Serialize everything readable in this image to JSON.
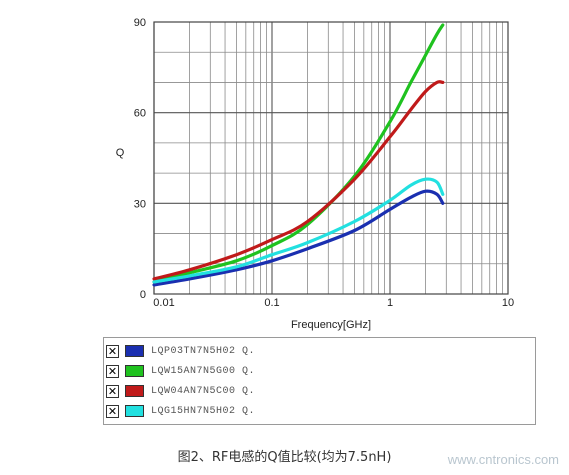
{
  "chart_data": {
    "type": "line",
    "xlabel": "Frequency[GHz]",
    "ylabel": "Q",
    "xscale": "log",
    "xlim": [
      0.01,
      10
    ],
    "ylim": [
      0,
      90
    ],
    "x_ticks": [
      "0.01",
      "0.1",
      "1",
      "10"
    ],
    "y_ticks": [
      "0",
      "30",
      "60",
      "90"
    ],
    "grid": true,
    "legend_position": "bottom",
    "series": [
      {
        "name": "LQP03TN7N5H02  Q.",
        "color": "#1a2fb0",
        "x": [
          0.01,
          0.02,
          0.05,
          0.1,
          0.2,
          0.5,
          1.0,
          1.5,
          2.0,
          2.5,
          2.8
        ],
        "y": [
          3,
          5,
          8,
          11,
          15,
          21,
          28,
          32,
          34,
          33,
          30
        ]
      },
      {
        "name": "LQW15AN7N5G00  Q.",
        "color": "#1fc21f",
        "x": [
          0.01,
          0.02,
          0.05,
          0.1,
          0.2,
          0.5,
          1.0,
          1.5,
          2.0,
          2.5,
          2.8
        ],
        "y": [
          4,
          7,
          11,
          16,
          23,
          39,
          57,
          70,
          79,
          86,
          89
        ]
      },
      {
        "name": "LQW04AN7N5C00  Q.",
        "color": "#c01a1a",
        "x": [
          0.01,
          0.02,
          0.05,
          0.1,
          0.2,
          0.5,
          1.0,
          1.5,
          2.0,
          2.5,
          2.8
        ],
        "y": [
          5,
          8,
          13,
          18,
          24,
          38,
          52,
          61,
          67,
          70,
          70
        ]
      },
      {
        "name": "LQG15HN7N5H02  Q.",
        "color": "#22e0e0",
        "x": [
          0.01,
          0.02,
          0.05,
          0.1,
          0.2,
          0.5,
          1.0,
          1.5,
          2.0,
          2.5,
          2.8
        ],
        "y": [
          4,
          6,
          9,
          13,
          17,
          24,
          31,
          36,
          38,
          37,
          33
        ]
      }
    ]
  },
  "legend": {
    "items": [
      {
        "label": "LQP03TN7N5H02  Q.",
        "color": "#1a2fb0",
        "checked": "✕"
      },
      {
        "label": "LQW15AN7N5G00  Q.",
        "color": "#1fc21f",
        "checked": "✕"
      },
      {
        "label": "LQW04AN7N5C00  Q.",
        "color": "#c01a1a",
        "checked": "✕"
      },
      {
        "label": "LQG15HN7N5H02  Q.",
        "color": "#22e0e0",
        "checked": "✕"
      }
    ]
  },
  "caption": "图2、RF电感的Q值比较(均为7.5nH)",
  "watermark": "www.cntronics.com"
}
